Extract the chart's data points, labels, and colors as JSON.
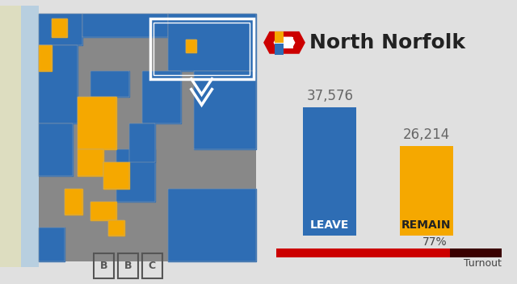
{
  "title": "North Norfolk",
  "leave_votes": 37576,
  "remain_votes": 26214,
  "leave_label": "LEAVE",
  "remain_label": "REMAIN",
  "leave_color": "#2E6DB4",
  "remain_color": "#F5A800",
  "turnout_pct": 77,
  "turnout_label": "Turnout",
  "turnout_bar_color": "#CC0000",
  "turnout_bar_dark": "#3a0000",
  "bg_color": "#E0E0E0",
  "title_fontsize": 18,
  "vote_fontsize": 12,
  "bar_label_fontsize": 10,
  "turnout_fontsize": 10,
  "logo_red": "#CC0000",
  "logo_blue": "#2E6DB4",
  "logo_yellow": "#F5A800",
  "bbc_color": "#555555"
}
